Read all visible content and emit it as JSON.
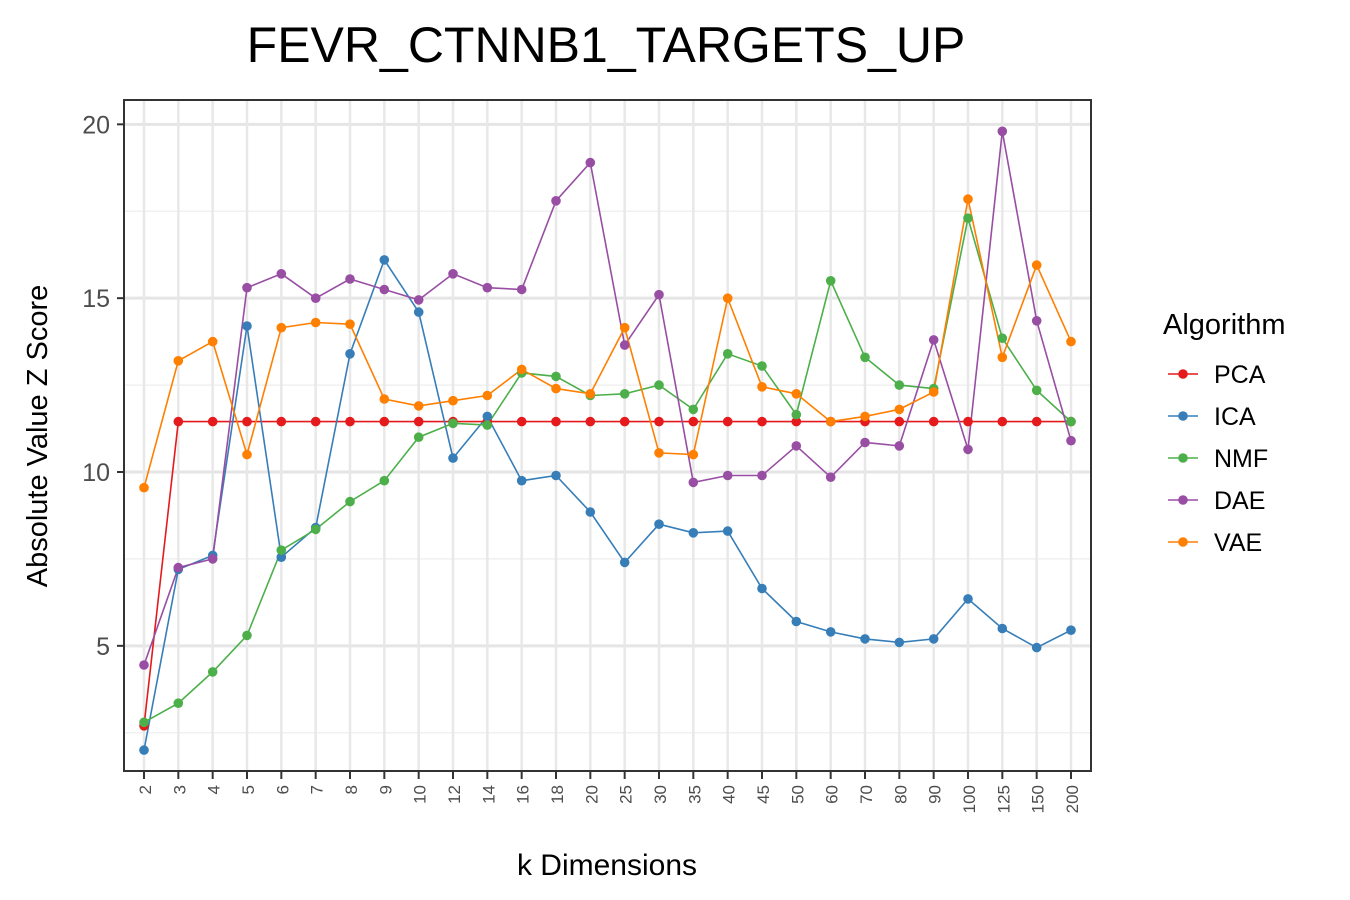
{
  "chart_data": {
    "type": "line",
    "title": "FEVR_CTNNB1_TARGETS_UP",
    "xlabel": "k Dimensions",
    "ylabel": "Absolute Value Z Score",
    "categories": [
      "2",
      "3",
      "4",
      "5",
      "6",
      "7",
      "8",
      "9",
      "10",
      "12",
      "14",
      "16",
      "18",
      "20",
      "25",
      "30",
      "35",
      "40",
      "45",
      "50",
      "60",
      "70",
      "80",
      "90",
      "100",
      "125",
      "150",
      "200"
    ],
    "y_ticks": [
      5,
      10,
      15,
      20
    ],
    "ylim": [
      1.4,
      20.7
    ],
    "grid": true,
    "legend": {
      "title": "Algorithm",
      "position": "right"
    },
    "series": [
      {
        "name": "PCA",
        "color": "#E41A1C",
        "values": [
          2.7,
          11.45,
          11.45,
          11.45,
          11.45,
          11.45,
          11.45,
          11.45,
          11.45,
          11.45,
          11.45,
          11.45,
          11.45,
          11.45,
          11.45,
          11.45,
          11.45,
          11.45,
          11.45,
          11.45,
          11.45,
          11.45,
          11.45,
          11.45,
          11.45,
          11.45,
          11.45,
          11.45
        ]
      },
      {
        "name": "ICA",
        "color": "#377EB8",
        "values": [
          2.0,
          7.2,
          7.6,
          14.2,
          7.55,
          8.4,
          13.4,
          16.1,
          14.6,
          10.4,
          11.6,
          9.75,
          9.9,
          8.85,
          7.4,
          8.5,
          8.25,
          8.3,
          6.65,
          5.7,
          5.4,
          5.2,
          5.1,
          5.2,
          6.35,
          5.5,
          4.95,
          5.45
        ]
      },
      {
        "name": "NMF",
        "color": "#4DAF4A",
        "values": [
          2.8,
          3.35,
          4.25,
          5.3,
          7.75,
          8.35,
          9.15,
          9.75,
          11.0,
          11.4,
          11.35,
          12.85,
          12.75,
          12.2,
          12.25,
          12.5,
          11.8,
          13.4,
          13.05,
          11.65,
          15.5,
          13.3,
          12.5,
          12.4,
          17.3,
          13.85,
          12.35,
          11.45
        ]
      },
      {
        "name": "DAE",
        "color": "#984EA3",
        "values": [
          4.45,
          7.25,
          7.5,
          15.3,
          15.7,
          15.0,
          15.55,
          15.25,
          14.95,
          15.7,
          15.3,
          15.25,
          17.8,
          18.9,
          13.65,
          15.1,
          9.7,
          9.9,
          9.9,
          10.75,
          9.85,
          10.85,
          10.75,
          13.8,
          10.65,
          19.8,
          14.35,
          10.9
        ]
      },
      {
        "name": "VAE",
        "color": "#FF7F00",
        "values": [
          9.55,
          13.2,
          13.75,
          10.5,
          14.15,
          14.3,
          14.25,
          12.1,
          11.9,
          12.05,
          12.2,
          12.95,
          12.4,
          12.25,
          14.15,
          10.55,
          10.5,
          15.0,
          12.45,
          12.25,
          11.45,
          11.6,
          11.8,
          12.3,
          17.85,
          13.3,
          15.95,
          13.75
        ]
      }
    ]
  }
}
